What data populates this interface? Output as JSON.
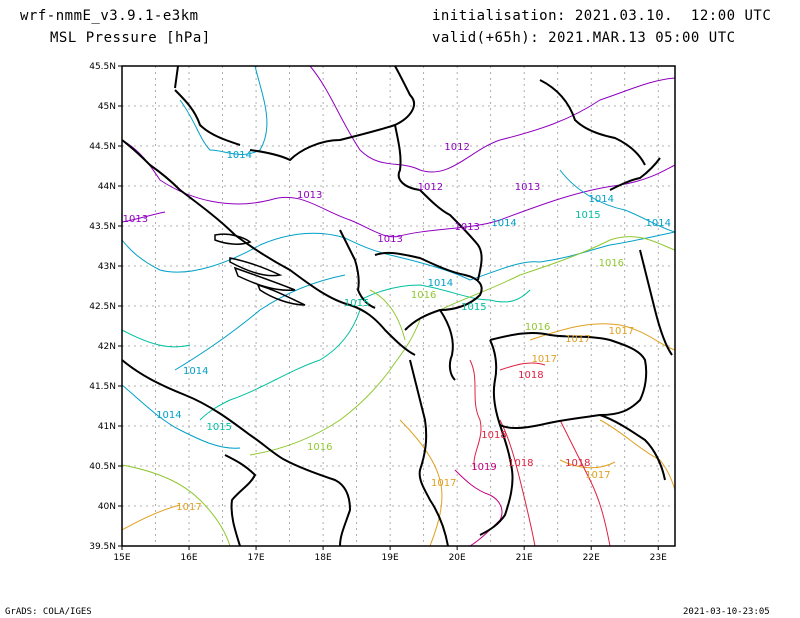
{
  "header": {
    "model": "wrf-nmmE_v3.9.1-e3km",
    "field": "MSL Pressure [hPa]",
    "init": "initialisation: 2021.03.10.  12:00 UTC",
    "valid": "valid(+65h): 2021.MAR.13 05:00 UTC"
  },
  "footer": {
    "left": "GrADS: COLA/IGES",
    "right": "2021-03-10-23:05"
  },
  "axes": {
    "lon_ticks": [
      "15E",
      "16E",
      "17E",
      "18E",
      "19E",
      "20E",
      "21E",
      "22E",
      "23E"
    ],
    "lat_ticks": [
      "45.5N",
      "45N",
      "44.5N",
      "44N",
      "43.5N",
      "43N",
      "42.5N",
      "42N",
      "41.5N",
      "41N",
      "40.5N",
      "40N",
      "39.5N"
    ]
  },
  "contour_labels": [
    {
      "text": "1014",
      "lon": 16.75,
      "lat": 44.35,
      "color": "#00a0c8"
    },
    {
      "text": "1013",
      "lon": 17.8,
      "lat": 43.85,
      "color": "#9000c0"
    },
    {
      "text": "1013",
      "lon": 15.2,
      "lat": 43.55,
      "color": "#9000c0"
    },
    {
      "text": "1012",
      "lon": 20.0,
      "lat": 44.45,
      "color": "#9000c0"
    },
    {
      "text": "1012",
      "lon": 19.6,
      "lat": 43.95,
      "color": "#9000c0"
    },
    {
      "text": "1013",
      "lon": 21.05,
      "lat": 43.95,
      "color": "#9000c0"
    },
    {
      "text": "1013",
      "lon": 19.0,
      "lat": 43.3,
      "color": "#9000c0"
    },
    {
      "text": "1013",
      "lon": 20.15,
      "lat": 43.45,
      "color": "#9000c0"
    },
    {
      "text": "1014",
      "lon": 20.7,
      "lat": 43.5,
      "color": "#00a0c8"
    },
    {
      "text": "1015",
      "lon": 21.95,
      "lat": 43.6,
      "color": "#00c0a0"
    },
    {
      "text": "1014",
      "lon": 22.15,
      "lat": 43.8,
      "color": "#00a0c8"
    },
    {
      "text": "1014",
      "lon": 23.0,
      "lat": 43.5,
      "color": "#00a0c8"
    },
    {
      "text": "1014",
      "lon": 19.75,
      "lat": 42.75,
      "color": "#00a0c8"
    },
    {
      "text": "1016",
      "lon": 19.5,
      "lat": 42.6,
      "color": "#90c830"
    },
    {
      "text": "1015",
      "lon": 20.25,
      "lat": 42.45,
      "color": "#00c0a0"
    },
    {
      "text": "1015",
      "lon": 18.5,
      "lat": 42.5,
      "color": "#00c0a0"
    },
    {
      "text": "1016",
      "lon": 22.3,
      "lat": 43.0,
      "color": "#90c830"
    },
    {
      "text": "1016",
      "lon": 21.2,
      "lat": 42.2,
      "color": "#90c830"
    },
    {
      "text": "1017",
      "lon": 21.8,
      "lat": 42.05,
      "color": "#e0a020"
    },
    {
      "text": "1017",
      "lon": 22.45,
      "lat": 42.15,
      "color": "#e0a020"
    },
    {
      "text": "1017",
      "lon": 21.3,
      "lat": 41.8,
      "color": "#e0a020"
    },
    {
      "text": "1018",
      "lon": 21.1,
      "lat": 41.6,
      "color": "#e02040"
    },
    {
      "text": "1014",
      "lon": 16.1,
      "lat": 41.65,
      "color": "#00a0c8"
    },
    {
      "text": "1014",
      "lon": 15.7,
      "lat": 41.1,
      "color": "#00a0c8"
    },
    {
      "text": "1015",
      "lon": 16.45,
      "lat": 40.95,
      "color": "#00c0a0"
    },
    {
      "text": "1016",
      "lon": 17.95,
      "lat": 40.7,
      "color": "#90c830"
    },
    {
      "text": "1018",
      "lon": 20.55,
      "lat": 40.85,
      "color": "#e02040"
    },
    {
      "text": "1019",
      "lon": 20.4,
      "lat": 40.45,
      "color": "#c00080"
    },
    {
      "text": "1018",
      "lon": 20.95,
      "lat": 40.5,
      "color": "#e02040"
    },
    {
      "text": "1018",
      "lon": 21.8,
      "lat": 40.5,
      "color": "#e02040"
    },
    {
      "text": "1017",
      "lon": 22.1,
      "lat": 40.35,
      "color": "#e0a020"
    },
    {
      "text": "1017",
      "lon": 19.8,
      "lat": 40.25,
      "color": "#e0a020"
    },
    {
      "text": "1017",
      "lon": 16.0,
      "lat": 39.95,
      "color": "#e0a020"
    }
  ]
}
